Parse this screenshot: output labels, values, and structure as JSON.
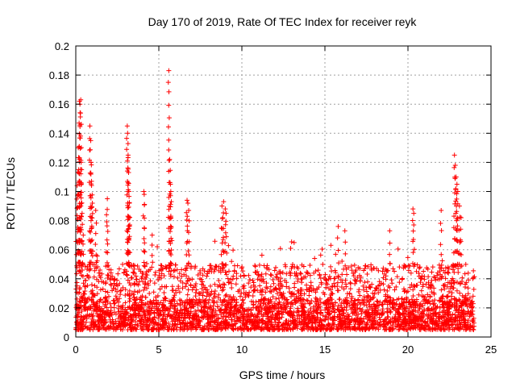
{
  "chart_data": {
    "type": "scatter",
    "title": "Day 170 of 2019, Rate Of TEC Index for receiver reyk",
    "xlabel": "GPS time / hours",
    "ylabel": "ROTI / TECUs",
    "xlim": [
      0,
      25
    ],
    "ylim": [
      0,
      0.2
    ],
    "xticks": [
      0,
      5,
      10,
      15,
      20,
      25
    ],
    "xtick_labels": [
      "0",
      "5",
      "10",
      "15",
      "20",
      "25"
    ],
    "yticks": [
      0,
      0.02,
      0.04,
      0.06,
      0.08,
      0.1,
      0.12,
      0.14,
      0.16,
      0.18,
      0.2
    ],
    "ytick_labels": [
      "0",
      "0.02",
      "0.04",
      "0.06",
      "0.08",
      "0.1",
      "0.12",
      "0.14",
      "0.16",
      "0.18",
      "0.2"
    ],
    "grid": true,
    "marker": "+",
    "color": "#ff0000",
    "x_data_range": [
      0,
      24
    ],
    "series": [
      {
        "name": "ROTI",
        "baseline_range": [
          0.005,
          0.05
        ],
        "notable_points": [
          {
            "x": 0.08,
            "y": 0.104
          },
          {
            "x": 0.12,
            "y": 0.098
          },
          {
            "x": 0.15,
            "y": 0.13
          },
          {
            "x": 0.2,
            "y": 0.147
          },
          {
            "x": 0.22,
            "y": 0.162
          },
          {
            "x": 0.25,
            "y": 0.16
          },
          {
            "x": 0.3,
            "y": 0.163
          },
          {
            "x": 0.32,
            "y": 0.12
          },
          {
            "x": 0.35,
            "y": 0.115
          },
          {
            "x": 0.38,
            "y": 0.085
          },
          {
            "x": 0.45,
            "y": 0.07
          },
          {
            "x": 0.85,
            "y": 0.145
          },
          {
            "x": 0.9,
            "y": 0.135
          },
          {
            "x": 0.92,
            "y": 0.12
          },
          {
            "x": 0.95,
            "y": 0.107
          },
          {
            "x": 1.0,
            "y": 0.092
          },
          {
            "x": 1.2,
            "y": 0.087
          },
          {
            "x": 1.85,
            "y": 0.084
          },
          {
            "x": 1.9,
            "y": 0.095
          },
          {
            "x": 3.1,
            "y": 0.145
          },
          {
            "x": 3.12,
            "y": 0.14
          },
          {
            "x": 3.15,
            "y": 0.125
          },
          {
            "x": 3.18,
            "y": 0.113
          },
          {
            "x": 3.2,
            "y": 0.1
          },
          {
            "x": 3.22,
            "y": 0.092
          },
          {
            "x": 3.25,
            "y": 0.077
          },
          {
            "x": 4.1,
            "y": 0.1
          },
          {
            "x": 4.12,
            "y": 0.098
          },
          {
            "x": 4.6,
            "y": 0.07
          },
          {
            "x": 5.6,
            "y": 0.183
          },
          {
            "x": 5.65,
            "y": 0.122
          },
          {
            "x": 5.7,
            "y": 0.105
          },
          {
            "x": 5.72,
            "y": 0.1
          },
          {
            "x": 5.75,
            "y": 0.093
          },
          {
            "x": 6.7,
            "y": 0.094
          },
          {
            "x": 6.75,
            "y": 0.092
          },
          {
            "x": 6.8,
            "y": 0.087
          },
          {
            "x": 8.8,
            "y": 0.09
          },
          {
            "x": 8.9,
            "y": 0.093
          },
          {
            "x": 9.0,
            "y": 0.088
          },
          {
            "x": 9.05,
            "y": 0.085
          },
          {
            "x": 8.85,
            "y": 0.082
          },
          {
            "x": 15.8,
            "y": 0.076
          },
          {
            "x": 16.2,
            "y": 0.073
          },
          {
            "x": 18.9,
            "y": 0.073
          },
          {
            "x": 20.3,
            "y": 0.088
          },
          {
            "x": 20.35,
            "y": 0.085
          },
          {
            "x": 22.0,
            "y": 0.087
          },
          {
            "x": 22.8,
            "y": 0.125
          },
          {
            "x": 22.85,
            "y": 0.118
          },
          {
            "x": 22.9,
            "y": 0.11
          },
          {
            "x": 22.95,
            "y": 0.105
          },
          {
            "x": 23.0,
            "y": 0.1
          },
          {
            "x": 23.1,
            "y": 0.09
          },
          {
            "x": 23.2,
            "y": 0.082
          }
        ]
      }
    ]
  }
}
